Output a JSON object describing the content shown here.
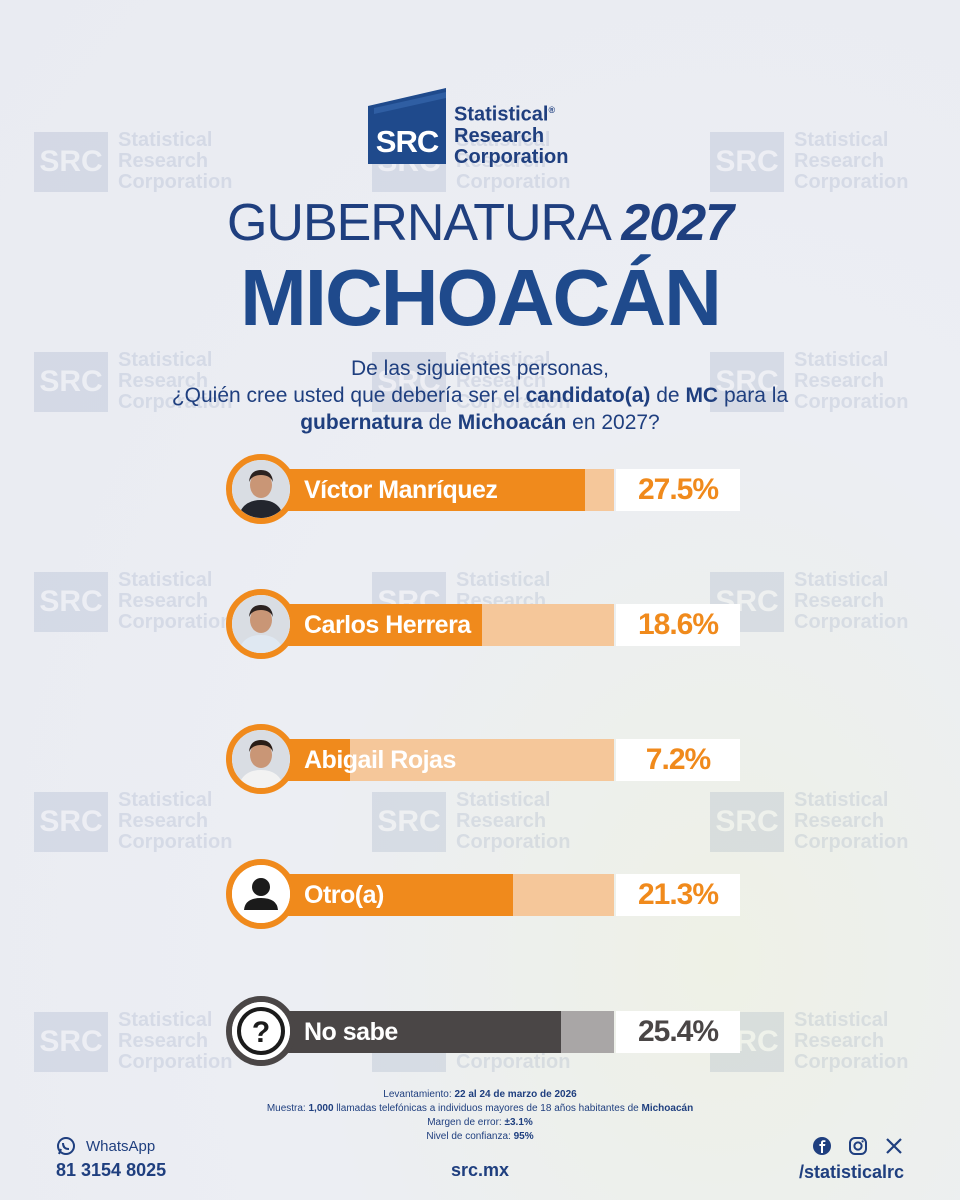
{
  "brand": {
    "logo_mark": "SRC",
    "name_line1": "Statistical",
    "name_line2": "Research",
    "name_line3": "Corporation",
    "registered": "®"
  },
  "watermark": {
    "mark": "SRC",
    "line1": "Statistical",
    "line2": "Research",
    "line3": "Corporation"
  },
  "title": {
    "line1_prefix": "GUBERNATURA",
    "line1_year": "2027",
    "line2": "MICHOACÁN"
  },
  "question": {
    "line1": "De las siguientes personas,",
    "p1": "¿Quién cree usted que debería ser el ",
    "b1": "candidato(a)",
    "p2": " de ",
    "b2": "MC",
    "p3": " para la",
    "b3": "gubernatura",
    "p4": " de ",
    "b4": "Michoacán",
    "p5": " en 2027?"
  },
  "colors": {
    "primary": "#1f3f7f",
    "orange": "#f08a1c",
    "orange_light": "#f5c79a",
    "gray_dark": "#4a4646",
    "gray_light": "#a9a6a6"
  },
  "chart_data": {
    "type": "bar",
    "orientation": "horizontal",
    "categories": [
      "Víctor Manríquez",
      "Carlos Herrera",
      "Abigail Rojas",
      "Otro(a)",
      "No sabe"
    ],
    "values": [
      27.5,
      18.6,
      7.2,
      21.3,
      25.4
    ],
    "labels": [
      "27.5%",
      "18.6%",
      "7.2%",
      "21.3%",
      "25.4%"
    ],
    "icons": [
      "person-photo-icon",
      "person-photo-icon",
      "person-photo-icon",
      "person-silhouette-icon",
      "question-mark-icon"
    ],
    "xlim": [
      0,
      30
    ]
  },
  "footer": {
    "lev_label": "Levantamiento: ",
    "lev_value": "22 al 24 de marzo de 2026",
    "muestra_label": "Muestra: ",
    "muestra_n": "1,000",
    "muestra_text": " llamadas telefónicas a individuos mayores de 18 años habitantes de ",
    "muestra_place": "Michoacán",
    "margen_label": "Margen de error: ",
    "margen_value": "±3.1%",
    "nivel_label": "Nivel de confianza: ",
    "nivel_value": "95%"
  },
  "contact": {
    "whatsapp_label": "WhatsApp",
    "whatsapp_number": "81 3154 8025",
    "website": "src.mx",
    "social_handle": "/statisticalrc",
    "social_icons": [
      "facebook-icon",
      "instagram-icon",
      "x-icon"
    ]
  }
}
